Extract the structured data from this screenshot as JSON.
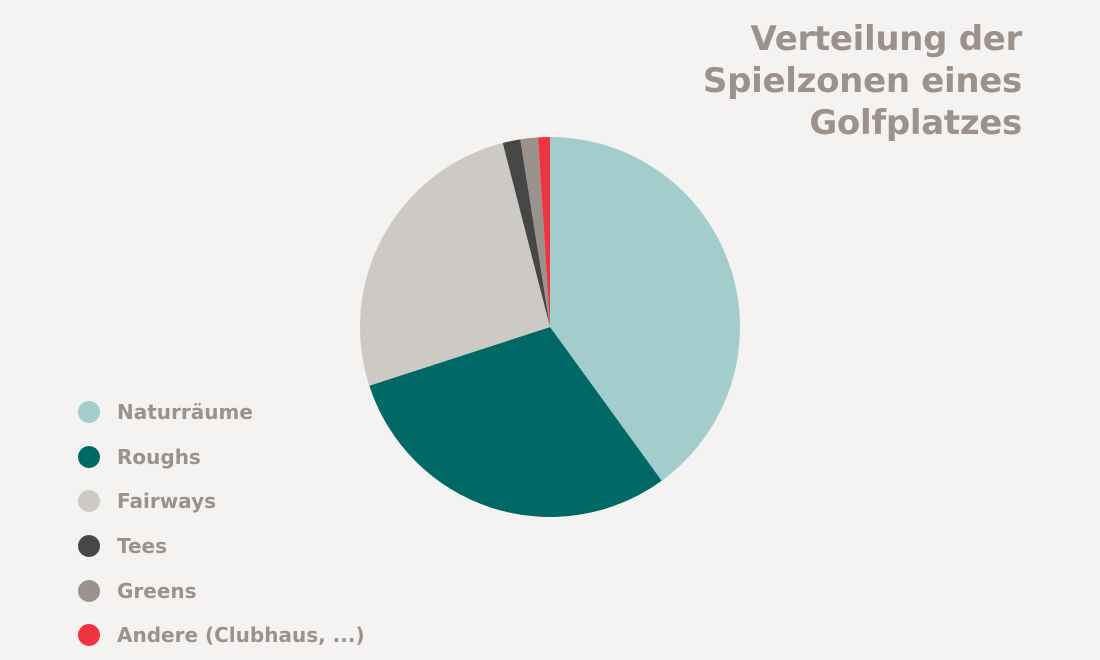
{
  "chart_data": {
    "type": "pie",
    "title_lines": [
      "Verteilung der",
      "Spielzonen eines",
      "Golfplatzes"
    ],
    "legend_placement": "bottom-left",
    "slices": [
      {
        "label": "Naturräume",
        "value": 40.0,
        "color": "#a3cdcc"
      },
      {
        "label": "Roughs",
        "value": 30.0,
        "color": "#006865"
      },
      {
        "label": "Fairways",
        "value": 26.0,
        "color": "#cdc9c5"
      },
      {
        "label": "Tees",
        "value": 1.5,
        "color": "#464646"
      },
      {
        "label": "Greens",
        "value": 1.5,
        "color": "#9b928d"
      },
      {
        "label": "Andere (Clubhaus, ...)",
        "value": 1.0,
        "color": "#ef3340"
      }
    ]
  }
}
